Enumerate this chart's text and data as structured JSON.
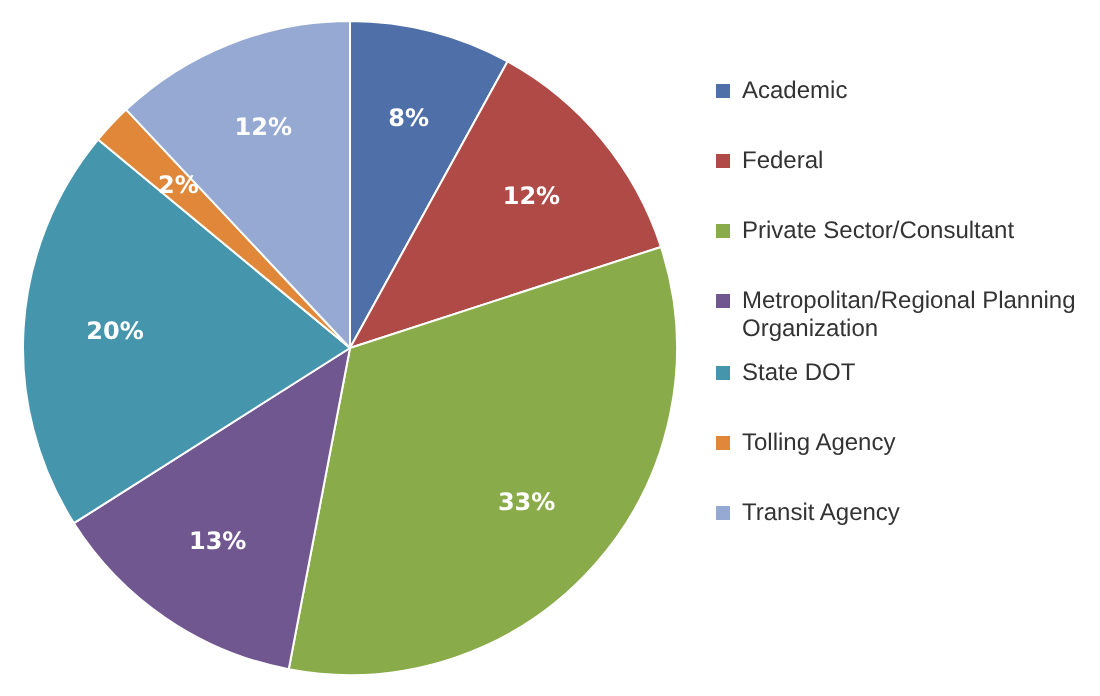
{
  "chart_data": {
    "type": "pie",
    "categories": [
      "Academic",
      "Federal",
      "Private Sector/Consultant",
      "Metropolitan/Regional Planning Organization",
      "State DOT",
      "Tolling Agency",
      "Transit Agency"
    ],
    "values": [
      8,
      12,
      33,
      13,
      20,
      2,
      12
    ],
    "colors": [
      "#4f6fa8",
      "#b04a47",
      "#8aab4a",
      "#71578f",
      "#4596ad",
      "#e0873a",
      "#95a9d3"
    ],
    "value_labels": [
      "8%",
      "12%",
      "33%",
      "13%",
      "20%",
      "2%",
      "12%"
    ],
    "legend": "right"
  }
}
